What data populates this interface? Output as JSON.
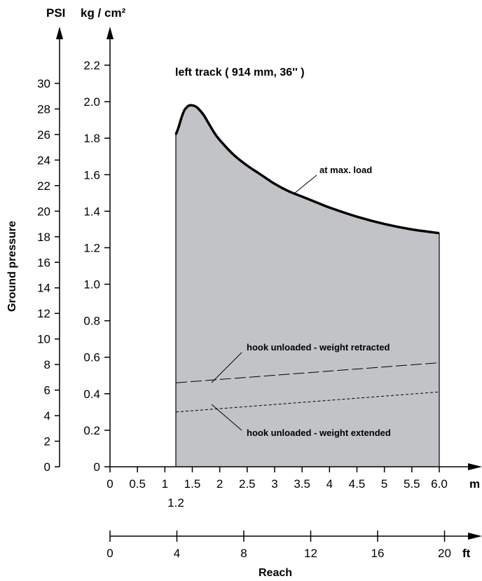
{
  "chart_data": {
    "type": "area",
    "title": "left track ( 914 mm, 36'' )",
    "ylabel": "Ground pressure",
    "xlabel": "Reach",
    "x_range_m": [
      0,
      6.0
    ],
    "y_range_kg": [
      0,
      2.3
    ],
    "y_axes": [
      {
        "unit": "PSI",
        "ticks": [
          "0",
          "2",
          "4",
          "6",
          "8",
          "10",
          "12",
          "14",
          "16",
          "18",
          "20",
          "22",
          "24",
          "26",
          "28",
          "30"
        ]
      },
      {
        "unit": "kg / cm²",
        "ticks": [
          "0",
          "0.2",
          "0.4",
          "0.6",
          "0.8",
          "1.0",
          "1.2",
          "1.4",
          "1.6",
          "1.8",
          "2.0",
          "2.2"
        ]
      }
    ],
    "x_axes": [
      {
        "unit": "m",
        "ticks": [
          "0",
          "0.5",
          "1",
          "1.5",
          "2",
          "2.5",
          "3",
          "3.5",
          "4",
          "4.5",
          "5",
          "5.5",
          "6.0"
        ],
        "extra_tick": "1.2"
      },
      {
        "unit": "ft",
        "ticks": [
          "0",
          "4",
          "8",
          "12",
          "16",
          "20"
        ]
      }
    ],
    "series": [
      {
        "name": "at max. load",
        "style": "solid",
        "fill": "#c2c3c6",
        "points": [
          [
            1.2,
            1.82
          ],
          [
            1.25,
            1.86
          ],
          [
            1.3,
            1.91
          ],
          [
            1.35,
            1.95
          ],
          [
            1.4,
            1.97
          ],
          [
            1.45,
            1.98
          ],
          [
            1.5,
            1.98
          ],
          [
            1.55,
            1.975
          ],
          [
            1.6,
            1.965
          ],
          [
            1.7,
            1.93
          ],
          [
            1.8,
            1.88
          ],
          [
            1.9,
            1.83
          ],
          [
            2.0,
            1.79
          ],
          [
            2.25,
            1.71
          ],
          [
            2.5,
            1.65
          ],
          [
            2.75,
            1.6
          ],
          [
            3.0,
            1.55
          ],
          [
            3.25,
            1.51
          ],
          [
            3.5,
            1.48
          ],
          [
            3.75,
            1.45
          ],
          [
            4.0,
            1.42
          ],
          [
            4.5,
            1.37
          ],
          [
            5.0,
            1.33
          ],
          [
            5.5,
            1.3
          ],
          [
            6.0,
            1.28
          ]
        ]
      },
      {
        "name": "hook unloaded - weight retracted",
        "style": "long-dash",
        "points": [
          [
            1.2,
            0.46
          ],
          [
            6.0,
            0.57
          ]
        ]
      },
      {
        "name": "hook unloaded - weight extended",
        "style": "short-dash",
        "points": [
          [
            1.2,
            0.3
          ],
          [
            6.0,
            0.41
          ]
        ]
      }
    ]
  }
}
